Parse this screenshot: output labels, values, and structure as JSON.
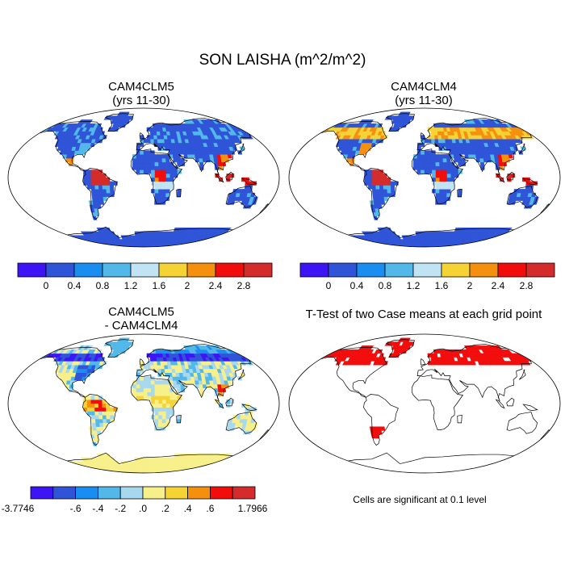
{
  "figure": {
    "title": "SON LAISHA (m^2/m^2)"
  },
  "panels": [
    {
      "id": "clm5",
      "title_line1": "CAM4CLM5",
      "title_line2": "(yrs 11-30)"
    },
    {
      "id": "clm4",
      "title_line1": "CAM4CLM4",
      "title_line2": "(yrs 11-30)"
    },
    {
      "id": "diff",
      "title_line1": "CAM4CLM5",
      "title_line2": "- CAM4CLM4"
    },
    {
      "id": "ttest",
      "title_line1": "T-Test of two Case means at each grid point",
      "title_line2": ""
    }
  ],
  "colorbars": {
    "absolute": {
      "colors": [
        "#3d14f5",
        "#2f54d8",
        "#1a8ef0",
        "#52b8ea",
        "#c0e4f4",
        "#f5d335",
        "#f5900f",
        "#f20d0d",
        "#d42b2b"
      ],
      "labels": [
        "0",
        "0.4",
        "0.8",
        "1.2",
        "1.6",
        "2",
        "2.4",
        "2.8"
      ]
    },
    "difference": {
      "colors": [
        "#3d14f5",
        "#2f54d8",
        "#1a8ef0",
        "#52b8ea",
        "#a8d8ee",
        "#f7f08a",
        "#f5d335",
        "#f5900f",
        "#f20d0d",
        "#d42b2b"
      ],
      "labels": [
        "-3.7746",
        ".-.6",
        ".-.4",
        ".-.2",
        ".0",
        ".2",
        ".4",
        ".6",
        "1.7966"
      ],
      "display_labels": [
        "-3.7746",
        "-.6",
        "-.4",
        "-.2",
        ".0",
        ".2",
        ".4",
        ".6",
        "1.7966"
      ]
    }
  },
  "significance_note": "Cells are significant at 0.1 level",
  "significance_color": "#f20d0d"
}
